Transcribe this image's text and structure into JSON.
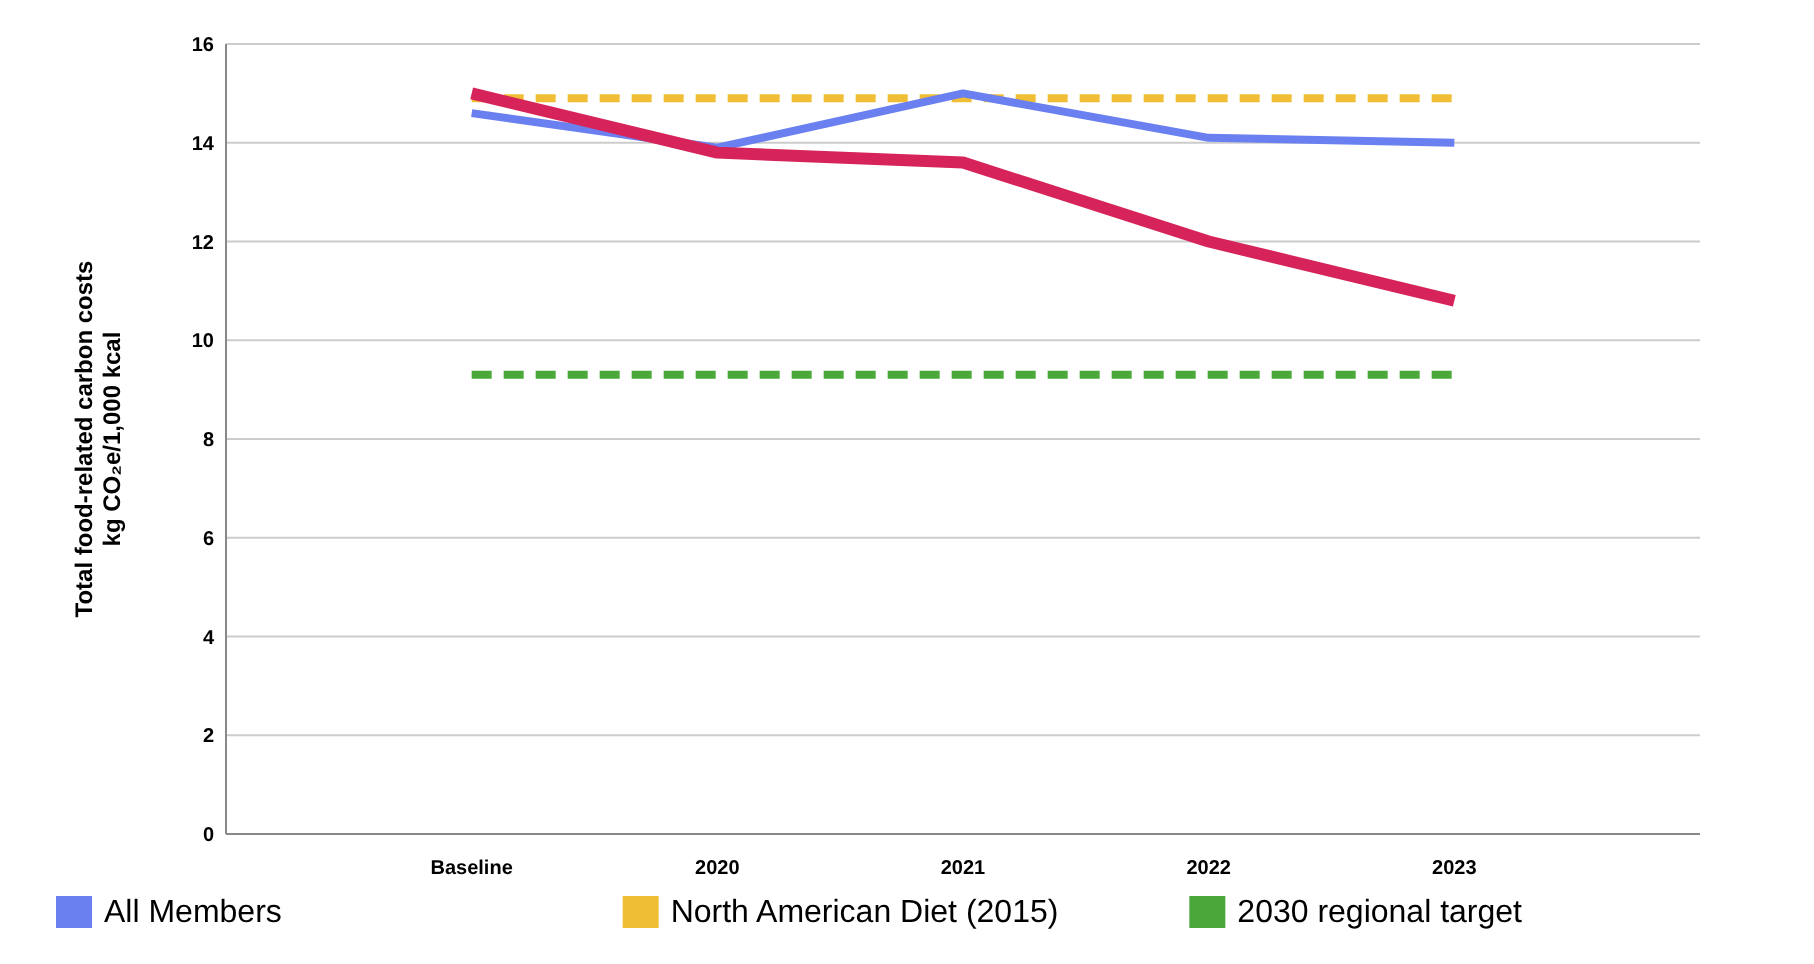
{
  "chart_data": {
    "type": "line",
    "ylabel": "Total food-related carbon costs\nkg CO₂e/1,000 kcal",
    "categories": [
      "Baseline",
      "2020",
      "2021",
      "2022",
      "2023"
    ],
    "series": [
      {
        "color": "#d6245a",
        "values": [
          15.0,
          13.8,
          13.6,
          12.0,
          10.8
        ]
      },
      {
        "name": "All Members",
        "color": "#6a80f0",
        "values": [
          14.6,
          13.9,
          15.0,
          14.1,
          14.0
        ]
      },
      {
        "name": "North American Diet (2015)",
        "color": "#f0be35",
        "values": [
          14.9,
          14.9,
          14.9,
          14.9,
          14.9
        ],
        "line_style": "dashed"
      },
      {
        "name": "2030 regional target",
        "color": "#4aa83a",
        "values": [
          9.3,
          9.3,
          9.3,
          9.3,
          9.3
        ],
        "line_style": "dashed"
      }
    ],
    "ylim": [
      0,
      16
    ],
    "yticks": [
      0,
      2,
      4,
      6,
      8,
      10,
      12,
      14,
      16
    ],
    "grid": "y",
    "legend": "bottom",
    "marker": "none",
    "line_style": "solid"
  }
}
